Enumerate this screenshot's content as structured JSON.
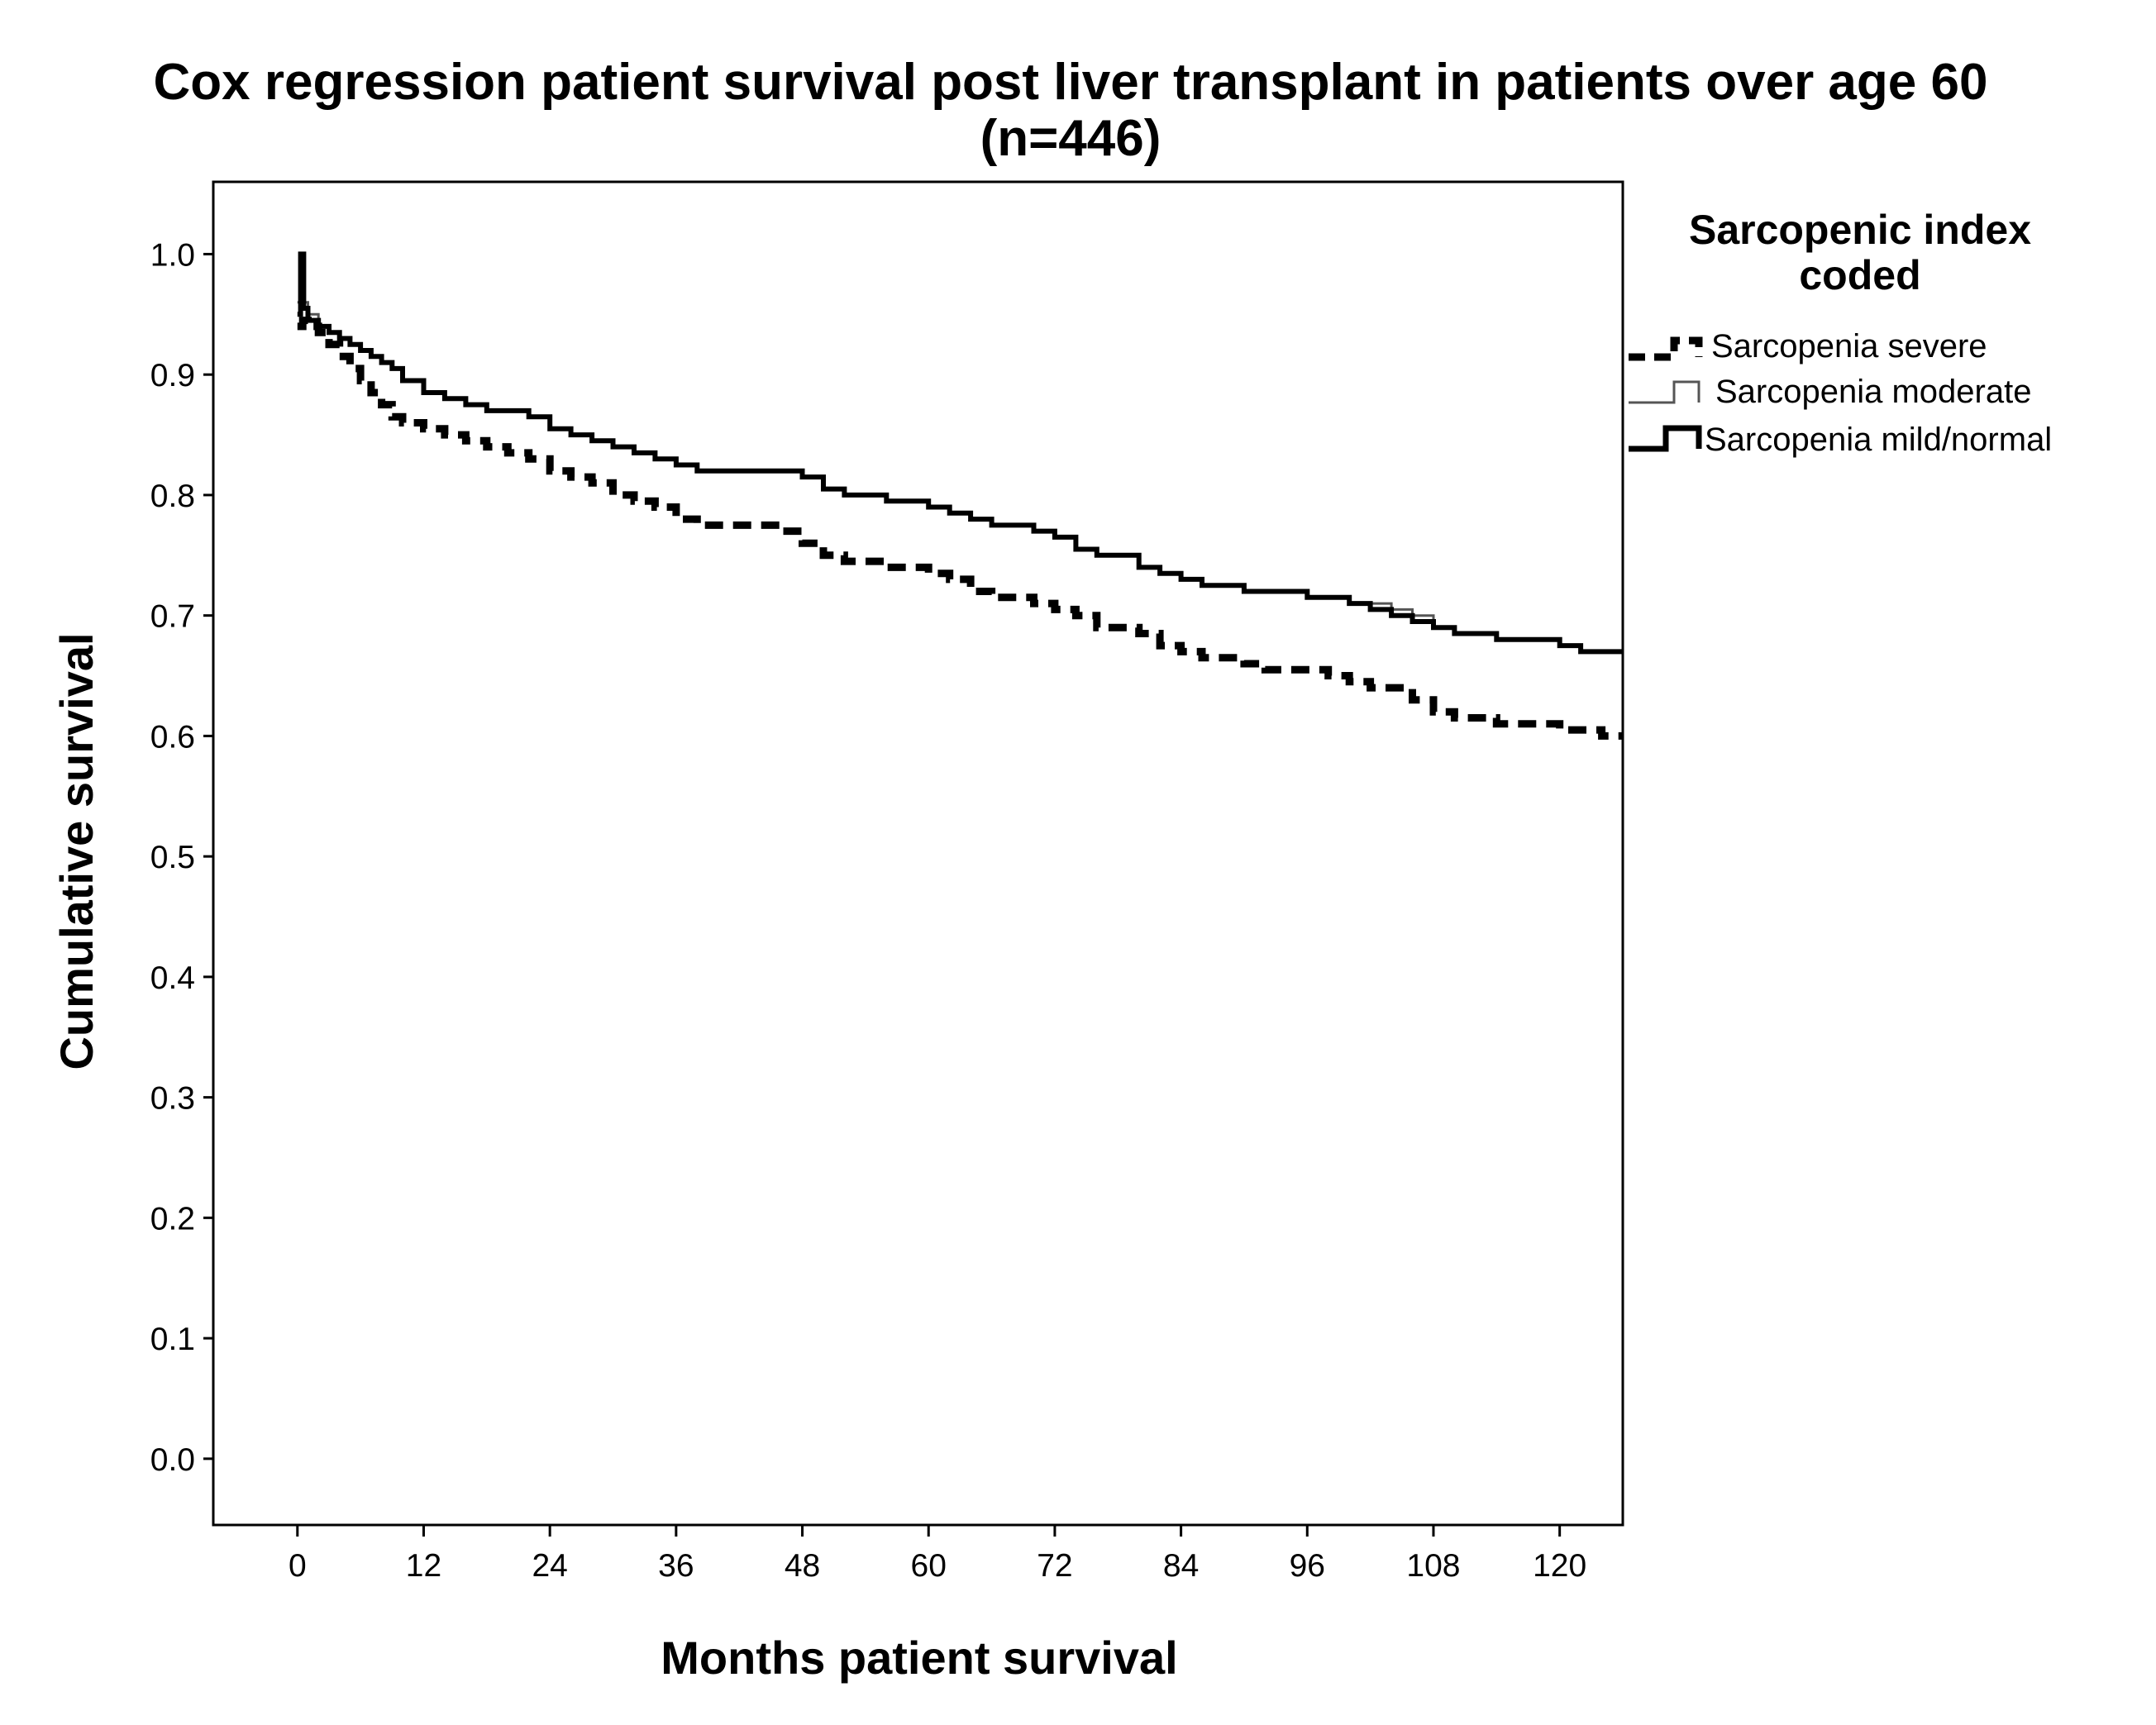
{
  "chart_data": {
    "type": "line",
    "title": "Cox regression patient survival post liver transplant in patients over age 60",
    "subtitle": "(n=446)",
    "xlabel": "Months patient survival",
    "ylabel": "Cumulative survival",
    "xlim": [
      -8,
      126
    ],
    "ylim": [
      -0.055,
      1.06
    ],
    "x_ticks": [
      0,
      12,
      24,
      36,
      48,
      60,
      72,
      84,
      96,
      108,
      120
    ],
    "x_tick_labels": [
      "0",
      "12",
      "24",
      "36",
      "48",
      "60",
      "72",
      "84",
      "96",
      "108",
      "120"
    ],
    "y_ticks": [
      0.0,
      0.1,
      0.2,
      0.3,
      0.4,
      0.5,
      0.6,
      0.7,
      0.8,
      0.9,
      1.0
    ],
    "y_tick_labels": [
      "0.0",
      "0.1",
      "0.2",
      "0.3",
      "0.4",
      "0.5",
      "0.6",
      "0.7",
      "0.8",
      "0.9",
      "1.0"
    ],
    "grid": false,
    "step": true,
    "legend": {
      "title": "Sarcopenic index coded",
      "title_lines": [
        "Sarcopenic index",
        "coded"
      ],
      "placement": "outside-right"
    },
    "series": [
      {
        "name": "Sarcopenia severe",
        "style": "dashed-thick",
        "color": "#000000",
        "x": [
          0,
          0.5,
          1,
          2,
          3,
          4,
          5,
          6,
          7,
          8,
          9,
          10,
          12,
          14,
          16,
          18,
          20,
          22,
          24,
          26,
          28,
          30,
          32,
          34,
          36,
          38,
          40,
          44,
          46,
          48,
          50,
          52,
          56,
          58,
          60,
          62,
          64,
          66,
          70,
          72,
          74,
          76,
          80,
          82,
          84,
          86,
          90,
          92,
          96,
          98,
          100,
          102,
          106,
          108,
          110,
          114,
          116,
          120,
          124,
          126
        ],
        "y": [
          0.94,
          0.945,
          0.94,
          0.935,
          0.925,
          0.915,
          0.905,
          0.895,
          0.885,
          0.875,
          0.865,
          0.86,
          0.855,
          0.85,
          0.845,
          0.84,
          0.835,
          0.83,
          0.82,
          0.815,
          0.81,
          0.8,
          0.795,
          0.79,
          0.78,
          0.775,
          0.775,
          0.775,
          0.77,
          0.76,
          0.75,
          0.745,
          0.74,
          0.74,
          0.735,
          0.73,
          0.72,
          0.715,
          0.71,
          0.705,
          0.7,
          0.69,
          0.685,
          0.675,
          0.67,
          0.665,
          0.66,
          0.655,
          0.655,
          0.65,
          0.645,
          0.64,
          0.63,
          0.62,
          0.615,
          0.61,
          0.61,
          0.605,
          0.6,
          0.6
        ]
      },
      {
        "name": "Sarcopenia moderate",
        "style": "solid-thin",
        "color": "#555555",
        "x": [
          0,
          0.3,
          0.6,
          1,
          2,
          3,
          4,
          5,
          6,
          7,
          8,
          9,
          10,
          12,
          14,
          16,
          18,
          20,
          22,
          24,
          26,
          28,
          30,
          32,
          34,
          36,
          38,
          40,
          46,
          48,
          50,
          52,
          56,
          60,
          62,
          64,
          66,
          68,
          70,
          72,
          74,
          76,
          80,
          82,
          84,
          86,
          90,
          94,
          96,
          98,
          100,
          102,
          104,
          106,
          108,
          110,
          114,
          116,
          120,
          122,
          126
        ],
        "y": [
          0.96,
          1.0,
          0.96,
          0.95,
          0.94,
          0.935,
          0.93,
          0.925,
          0.92,
          0.915,
          0.91,
          0.905,
          0.895,
          0.885,
          0.88,
          0.875,
          0.87,
          0.87,
          0.865,
          0.855,
          0.85,
          0.845,
          0.84,
          0.835,
          0.83,
          0.825,
          0.82,
          0.82,
          0.82,
          0.815,
          0.805,
          0.8,
          0.795,
          0.79,
          0.785,
          0.78,
          0.775,
          0.775,
          0.77,
          0.765,
          0.755,
          0.75,
          0.74,
          0.735,
          0.73,
          0.725,
          0.72,
          0.72,
          0.715,
          0.715,
          0.71,
          0.71,
          0.705,
          0.7,
          0.69,
          0.685,
          0.68,
          0.68,
          0.675,
          0.67,
          0.67
        ]
      },
      {
        "name": "Sarcopenia mild/normal",
        "style": "solid-thick",
        "color": "#000000",
        "x": [
          0,
          0.3,
          0.6,
          1,
          2,
          3,
          4,
          5,
          6,
          7,
          8,
          9,
          10,
          12,
          14,
          16,
          18,
          20,
          22,
          24,
          26,
          28,
          30,
          32,
          34,
          36,
          38,
          40,
          46,
          48,
          50,
          52,
          56,
          60,
          62,
          64,
          66,
          68,
          70,
          72,
          74,
          76,
          80,
          82,
          84,
          86,
          90,
          94,
          96,
          98,
          100,
          102,
          104,
          106,
          108,
          110,
          114,
          116,
          120,
          122,
          126
        ],
        "y": [
          0.95,
          1.0,
          0.955,
          0.945,
          0.94,
          0.935,
          0.93,
          0.925,
          0.92,
          0.915,
          0.91,
          0.905,
          0.895,
          0.885,
          0.88,
          0.875,
          0.87,
          0.87,
          0.865,
          0.855,
          0.85,
          0.845,
          0.84,
          0.835,
          0.83,
          0.825,
          0.82,
          0.82,
          0.82,
          0.815,
          0.805,
          0.8,
          0.795,
          0.79,
          0.785,
          0.78,
          0.775,
          0.775,
          0.77,
          0.765,
          0.755,
          0.75,
          0.74,
          0.735,
          0.73,
          0.725,
          0.72,
          0.72,
          0.715,
          0.715,
          0.71,
          0.705,
          0.7,
          0.695,
          0.69,
          0.685,
          0.68,
          0.68,
          0.675,
          0.67,
          0.67
        ]
      }
    ]
  }
}
